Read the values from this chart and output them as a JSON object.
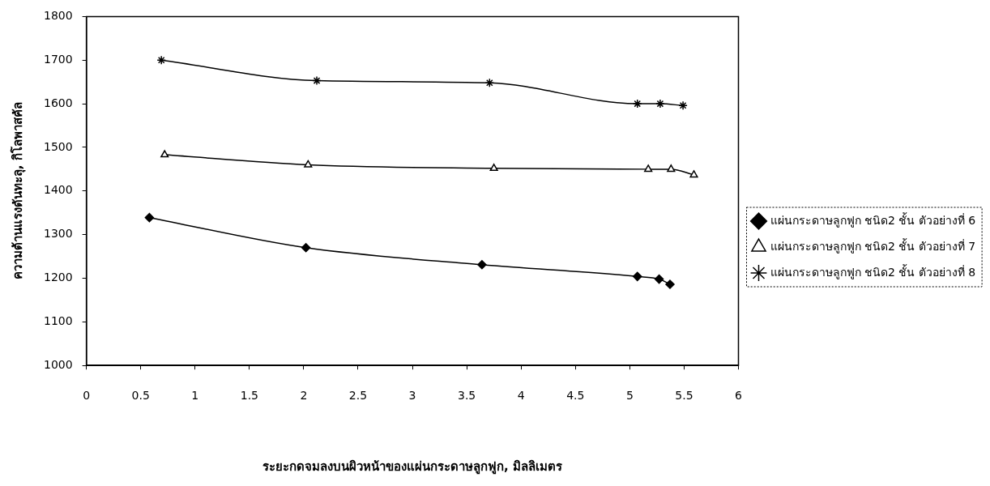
{
  "chart_data": {
    "type": "line",
    "xlabel": "ระยะกดจมลงบนผิวหน้าของแผ่นกระดาษลูกฟูก, มิลลิเมตร",
    "ylabel": "ความต้านแรงดันทะลุ, กิโลพาสคัล",
    "xlim": [
      0,
      6
    ],
    "xticks": [
      0,
      0.5,
      1,
      1.5,
      2,
      2.5,
      3,
      3.5,
      4,
      4.5,
      5,
      5.5,
      6
    ],
    "ylim": [
      1000,
      1800
    ],
    "yticks": [
      1000,
      1100,
      1200,
      1300,
      1400,
      1500,
      1600,
      1700,
      1800
    ],
    "grid": false,
    "legend": "right",
    "line_style": "solid",
    "series": [
      {
        "name": "แผ่นกระดาษลูกฟูก ชนิด2 ชั้น ตัวอย่างที่ 6",
        "color": "#000000",
        "marker": "diamond",
        "x": [
          0.58,
          2.02,
          3.64,
          5.07,
          5.27,
          5.37
        ],
        "values": [
          1339,
          1270,
          1231,
          1204,
          1198,
          1186
        ]
      },
      {
        "name": "แผ่นกระดาษลูกฟูก ชนิด2 ชั้น ตัวอย่างที่ 7",
        "color": "#000000",
        "marker": "triangle",
        "x": [
          0.72,
          2.04,
          3.75,
          5.17,
          5.38,
          5.59
        ],
        "values": [
          1483,
          1460,
          1452,
          1450,
          1450,
          1437
        ]
      },
      {
        "name": "แผ่นกระดาษลูกฟูก ชนิด2 ชั้น ตัวอย่างที่ 8",
        "color": "#000000",
        "marker": "cross",
        "x": [
          0.69,
          2.12,
          3.71,
          5.07,
          5.28,
          5.49
        ],
        "values": [
          1700,
          1653,
          1648,
          1600,
          1600,
          1596
        ]
      }
    ]
  }
}
